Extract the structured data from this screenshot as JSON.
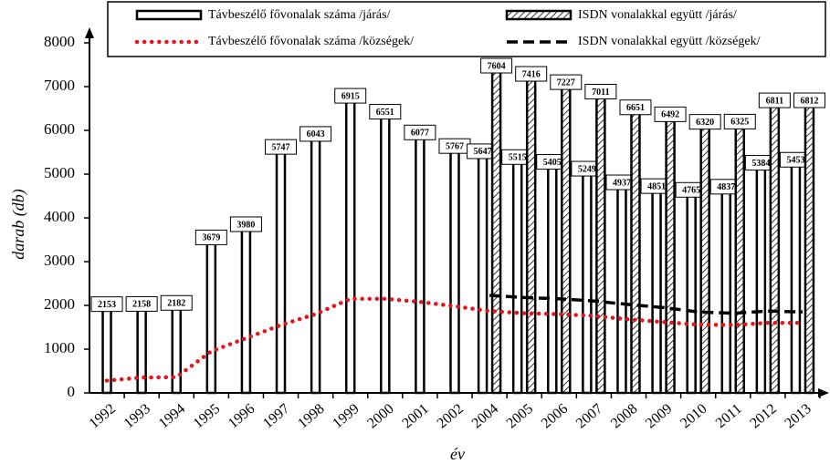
{
  "chart_data": {
    "type": "bar",
    "x_label": "év",
    "y_label": "darab (db)",
    "categories": [
      "1992",
      "1993",
      "1994",
      "1995",
      "1996",
      "1997",
      "1998",
      "1999",
      "2000",
      "2001",
      "2002",
      "2004",
      "2005",
      "2006",
      "2007",
      "2008",
      "2009",
      "2010",
      "2011",
      "2012",
      "2013"
    ],
    "series": [
      {
        "name": "Távbeszélő fővonalak száma /járás/",
        "type": "bar",
        "style": "plain",
        "color": "#000000",
        "values": [
          2153,
          2158,
          2182,
          3679,
          3980,
          5747,
          6043,
          6915,
          6551,
          6077,
          5767,
          5647,
          5515,
          5405,
          5249,
          4937,
          4851,
          4765,
          4837,
          5384,
          5453
        ]
      },
      {
        "name": "ISDN vonalakkal együtt /járás/",
        "type": "bar",
        "style": "hatched",
        "color": "#000000",
        "values": [
          null,
          null,
          null,
          null,
          null,
          null,
          null,
          null,
          null,
          null,
          null,
          7604,
          7416,
          7227,
          7011,
          6651,
          6492,
          6320,
          6325,
          6811,
          6812
        ]
      },
      {
        "name": "Távbeszélő fővonalak száma /községek/",
        "type": "line",
        "style": "dotted",
        "color": "#e8141b",
        "values": [
          280,
          350,
          360,
          950,
          1250,
          1550,
          1800,
          2150,
          2150,
          2080,
          1980,
          1870,
          1820,
          1800,
          1760,
          1680,
          1620,
          1560,
          1550,
          1600,
          1600
        ]
      },
      {
        "name": "ISDN vonalakkal együtt /községek/",
        "type": "line",
        "style": "dashed",
        "color": "#000000",
        "values": [
          null,
          null,
          null,
          null,
          null,
          null,
          null,
          null,
          null,
          null,
          null,
          2230,
          2180,
          2150,
          2100,
          2020,
          1950,
          1850,
          1820,
          1870,
          1850
        ]
      }
    ],
    "ylim": [
      0,
      8000
    ],
    "yticks": [
      0,
      1000,
      2000,
      3000,
      4000,
      5000,
      6000,
      7000,
      8000
    ],
    "data_labels": true,
    "legend": "top"
  }
}
